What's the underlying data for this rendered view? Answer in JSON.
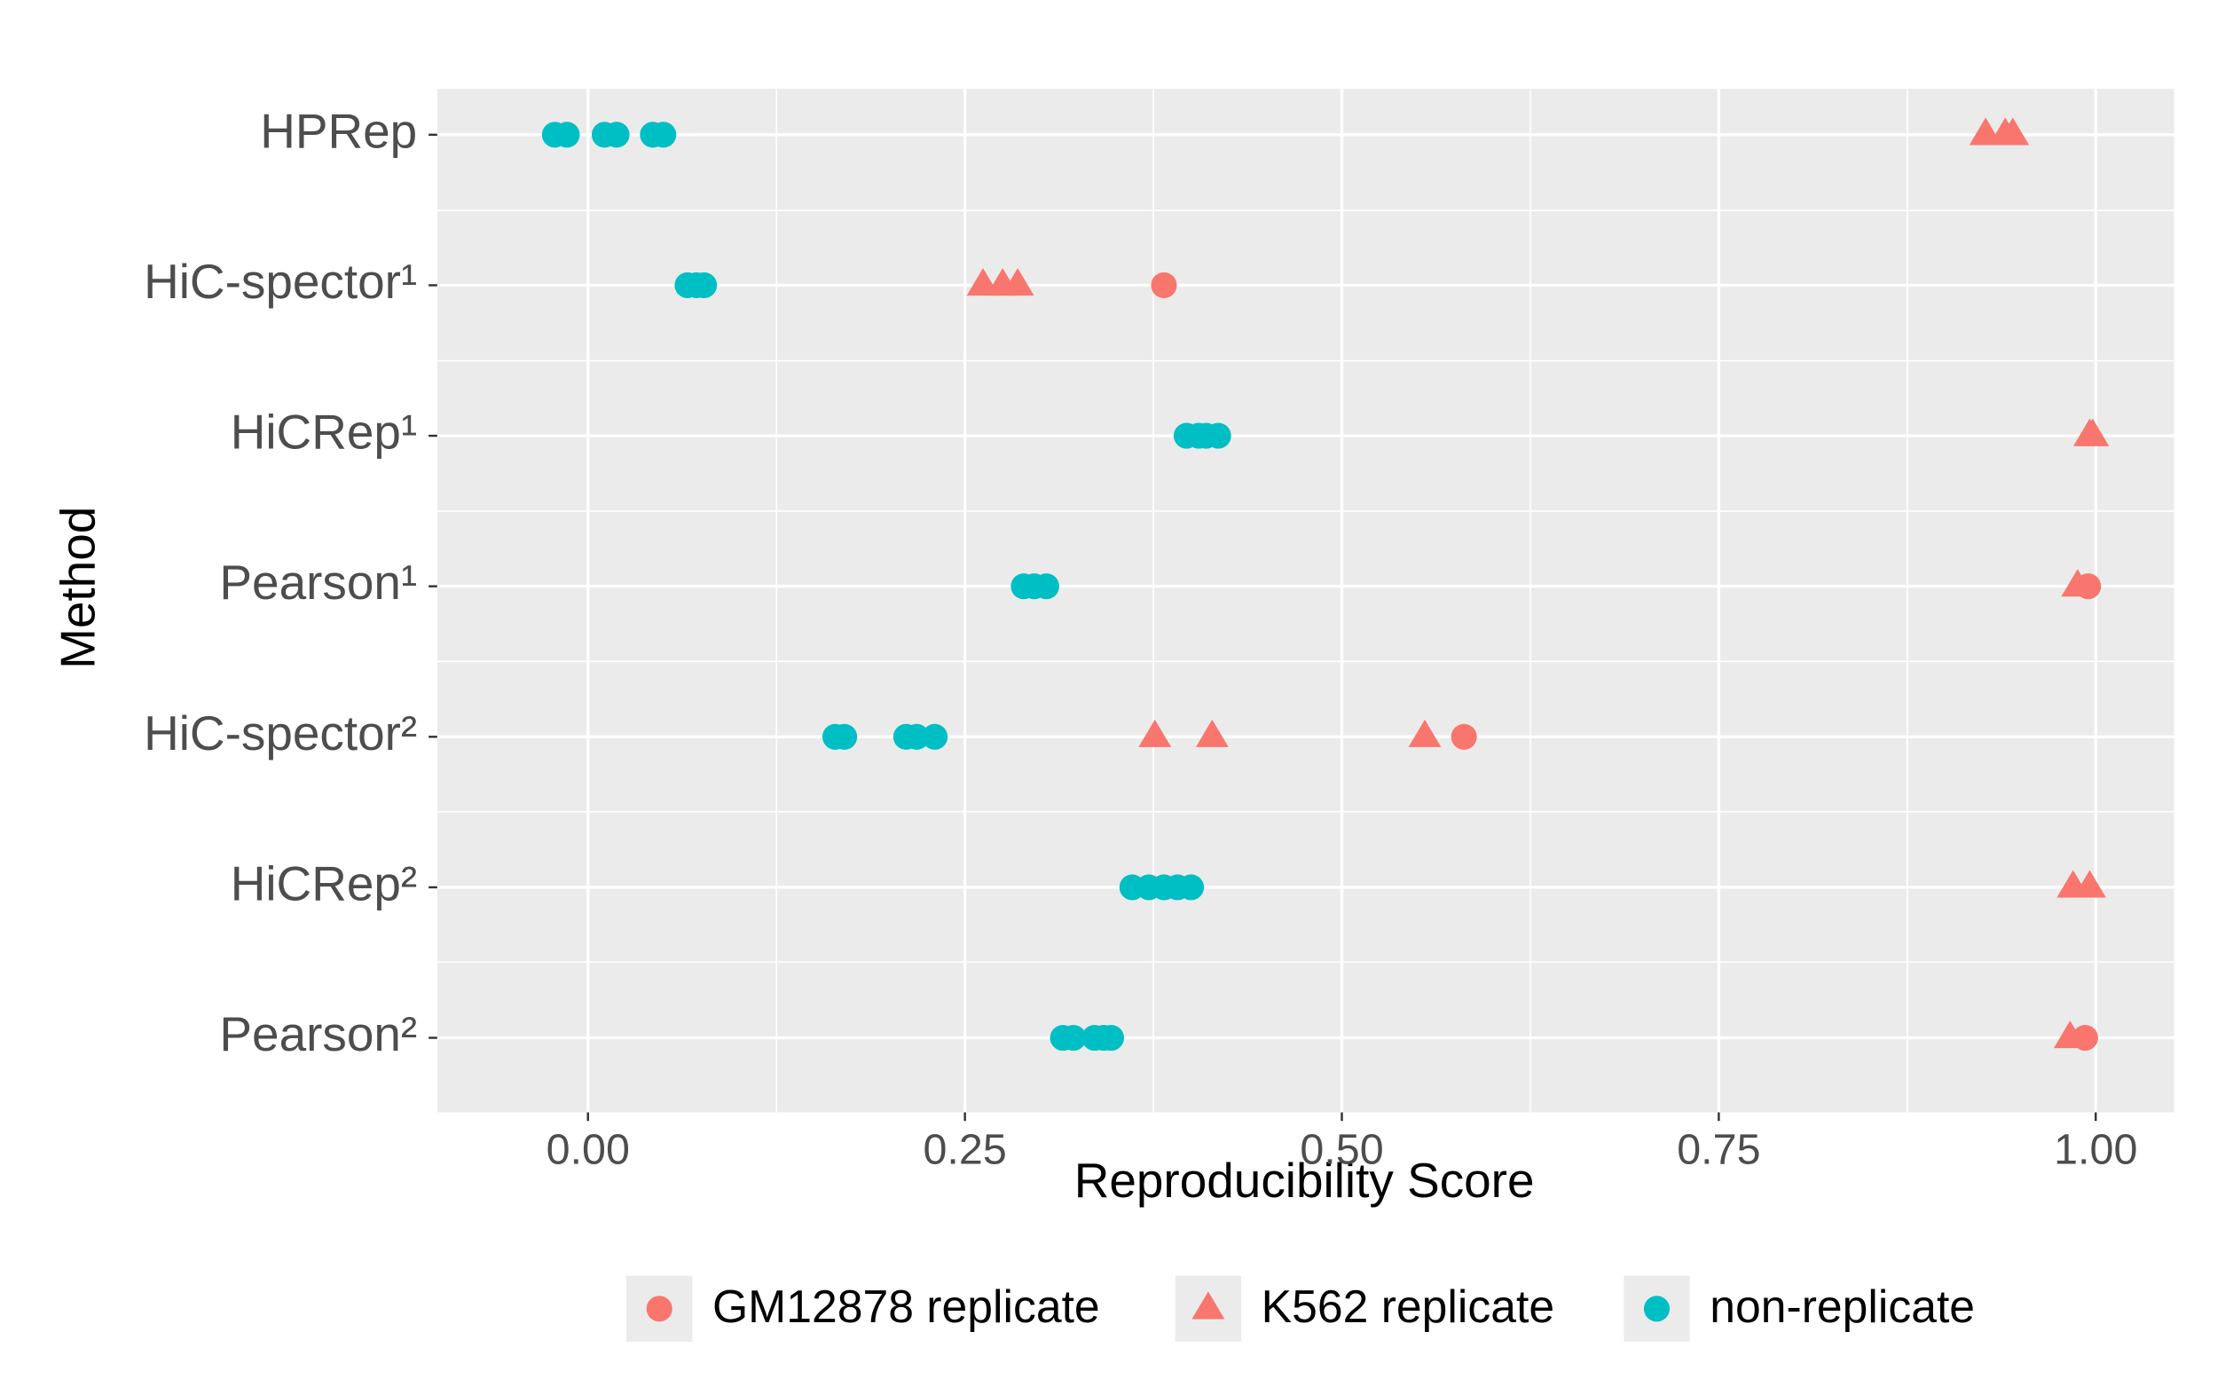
{
  "chart_data": {
    "type": "scatter",
    "x_label": "Reproducibility Score",
    "y_label": "Method",
    "categories": [
      "HPRep",
      "HiC-spector¹",
      "HiCRep¹",
      "Pearson¹",
      "HiC-spector²",
      "HiCRep²",
      "Pearson²"
    ],
    "xlim": [
      -0.1,
      1.052
    ],
    "xticks": [
      {
        "value": 0,
        "label": "0.00"
      },
      {
        "value": 0.25,
        "label": "0.25"
      },
      {
        "value": 0.5,
        "label": "0.50"
      },
      {
        "value": 0.75,
        "label": "0.75"
      },
      {
        "value": 1,
        "label": "1.00"
      }
    ],
    "grid": true,
    "legend": "bottom",
    "series": [
      {
        "name": "GM12878 replicate",
        "color": "#F8766D",
        "shape": "circle",
        "x": [
          0.382,
          0.995,
          0.581,
          0.993
        ],
        "y": [
          "HiC-spector¹",
          "Pearson¹",
          "HiC-spector²",
          "Pearson²"
        ]
      },
      {
        "name": "K562 replicate",
        "color": "#F8766D",
        "shape": "triangle",
        "x": [
          0.927,
          0.94,
          0.945,
          0.262,
          0.275,
          0.285,
          0.996,
          0.998,
          0.988,
          0.376,
          0.414,
          0.555,
          0.985,
          0.996,
          0.983
        ],
        "y": [
          "HPRep",
          "HPRep",
          "HPRep",
          "HiC-spector¹",
          "HiC-spector¹",
          "HiC-spector¹",
          "HiCRep¹",
          "HiCRep¹",
          "Pearson¹",
          "HiC-spector²",
          "HiC-spector²",
          "HiC-spector²",
          "HiCRep²",
          "HiCRep²",
          "Pearson²"
        ]
      },
      {
        "name": "non-replicate",
        "color": "#00BFC4",
        "shape": "circle",
        "x": [
          -0.022,
          -0.014,
          0.011,
          0.019,
          0.043,
          0.05,
          0.066,
          0.072,
          0.077,
          0.397,
          0.405,
          0.41,
          0.418,
          0.289,
          0.296,
          0.304,
          0.164,
          0.17,
          0.211,
          0.218,
          0.23,
          0.361,
          0.372,
          0.382,
          0.391,
          0.4,
          0.315,
          0.322,
          0.336,
          0.342,
          0.347
        ],
        "y": [
          "HPRep",
          "HPRep",
          "HPRep",
          "HPRep",
          "HPRep",
          "HPRep",
          "HiC-spector¹",
          "HiC-spector¹",
          "HiC-spector¹",
          "HiCRep¹",
          "HiCRep¹",
          "HiCRep¹",
          "HiCRep¹",
          "Pearson¹",
          "Pearson¹",
          "Pearson¹",
          "HiC-spector²",
          "HiC-spector²",
          "HiC-spector²",
          "HiC-spector²",
          "HiC-spector²",
          "HiCRep²",
          "HiCRep²",
          "HiCRep²",
          "HiCRep²",
          "HiCRep²",
          "Pearson²",
          "Pearson²",
          "Pearson²",
          "Pearson²",
          "Pearson²"
        ]
      }
    ]
  }
}
